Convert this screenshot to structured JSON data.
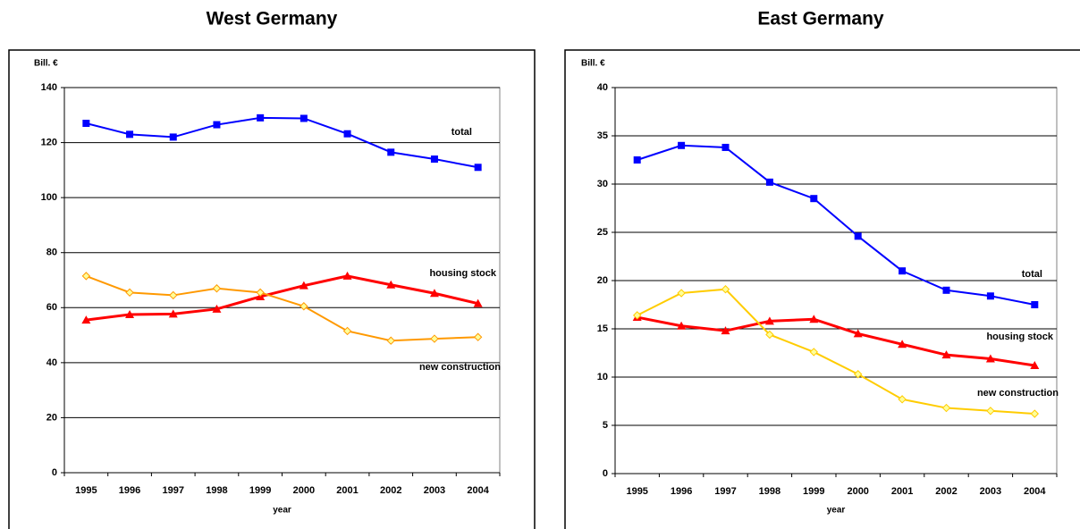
{
  "chart_data": [
    {
      "type": "line",
      "title": "West Germany",
      "y_label": "Bill. €",
      "x_label": "year",
      "categories": [
        "1995",
        "1996",
        "1997",
        "1998",
        "1999",
        "2000",
        "2001",
        "2002",
        "2003",
        "2004"
      ],
      "ylim": [
        0,
        140
      ],
      "yticks": [
        0,
        20,
        40,
        60,
        80,
        100,
        120,
        140
      ],
      "grid": true,
      "series": [
        {
          "name": "total",
          "color": "#0000ff",
          "marker": "square",
          "values": [
            127,
            123,
            122,
            126.5,
            129,
            128.8,
            123.2,
            116.5,
            114,
            111
          ]
        },
        {
          "name": "housing stock",
          "color": "#ff0000",
          "marker": "triangle",
          "values": [
            55.5,
            57.5,
            57.7,
            59.5,
            64,
            68,
            71.5,
            68.3,
            65.2,
            61.5
          ]
        },
        {
          "name": "new construction",
          "color": "#ff9900",
          "marker": "diamond",
          "values": [
            71.5,
            65.5,
            64.5,
            67,
            65.5,
            60.5,
            51.5,
            48,
            48.7,
            49.3
          ]
        }
      ]
    },
    {
      "type": "line",
      "title": "East Germany",
      "y_label": "Bill. €",
      "x_label": "year",
      "categories": [
        "1995",
        "1996",
        "1997",
        "1998",
        "1999",
        "2000",
        "2001",
        "2002",
        "2003",
        "2004"
      ],
      "ylim": [
        0,
        40
      ],
      "yticks": [
        0,
        5,
        10,
        15,
        20,
        25,
        30,
        35,
        40
      ],
      "grid": true,
      "series": [
        {
          "name": "total",
          "color": "#0000ff",
          "marker": "square",
          "values": [
            32.5,
            34,
            33.8,
            30.2,
            28.5,
            24.6,
            21,
            19,
            18.4,
            17.5
          ]
        },
        {
          "name": "housing stock",
          "color": "#ff0000",
          "marker": "triangle",
          "values": [
            16.2,
            15.3,
            14.8,
            15.8,
            16,
            14.5,
            13.4,
            12.3,
            11.9,
            11.2
          ]
        },
        {
          "name": "new construction",
          "color": "#ffcc00",
          "marker": "diamond",
          "values": [
            16.4,
            18.7,
            19.1,
            14.4,
            12.6,
            10.3,
            7.7,
            6.8,
            6.5,
            6.2
          ]
        }
      ]
    }
  ]
}
